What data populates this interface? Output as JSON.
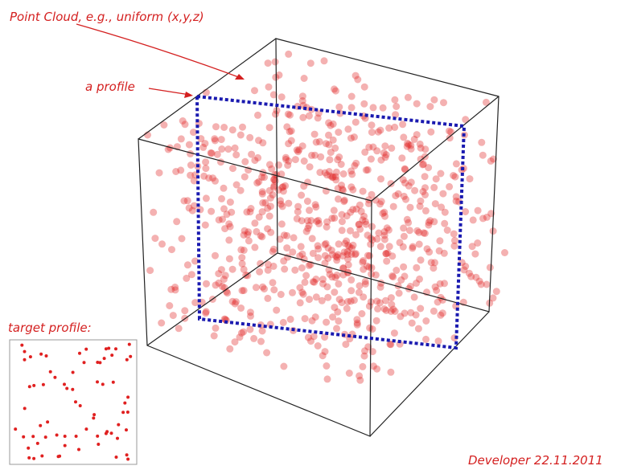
{
  "annotations": {
    "point_cloud": "Point Cloud, e.g., uniform (x,y,z)",
    "profile": "a profile",
    "target": "target profile:",
    "credit": "Developer 22.11.2011"
  }
}
